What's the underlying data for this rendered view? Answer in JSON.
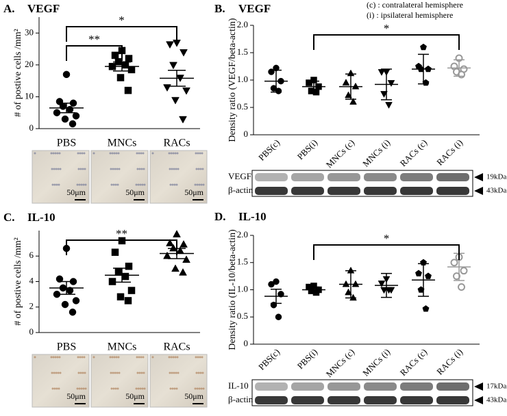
{
  "chart_data": [
    {
      "type": "dotplot",
      "label": "A.",
      "title": "VEGF",
      "ylabel": "# of postive cells /mm²",
      "categories": [
        "PBS",
        "MNCs",
        "RACs"
      ],
      "ylim": [
        0,
        35
      ],
      "yticks": [
        0,
        10,
        20,
        30
      ],
      "groups": [
        {
          "marker": "circle",
          "color": "#000000",
          "filled": true,
          "points": [
            17,
            8.5,
            8,
            7,
            6,
            5,
            4,
            3,
            1.5
          ],
          "mean": 6.5,
          "error": 1.5
        },
        {
          "marker": "square",
          "color": "#000000",
          "filled": true,
          "points": [
            24.5,
            23,
            22,
            21,
            20,
            19.5,
            18.5,
            16,
            12
          ],
          "mean": 19.5,
          "error": 1.4
        },
        {
          "marker": "triangle-down",
          "color": "#000000",
          "filled": true,
          "points": [
            27,
            26.5,
            24,
            20,
            16,
            13,
            12,
            9,
            3
          ],
          "mean": 15.8,
          "error": 2.5
        }
      ],
      "significance": [
        {
          "from": 0,
          "to": 2,
          "label": "*"
        },
        {
          "from": 0,
          "to": 1,
          "label": "**"
        }
      ],
      "micrographs": [
        "50μm",
        "50μm",
        "50μm"
      ]
    },
    {
      "type": "dotplot",
      "label": "B.",
      "title": "VEGF",
      "ylabel": "Density ratio (VEGF/beta-actin)",
      "notes": [
        "(c) : contralateral  hemisphere",
        "(i) : ipsilateral hemisphere"
      ],
      "categories": [
        "PBS(c)",
        "PBS(i)",
        "MNCs (c)",
        "MNCs (i)",
        "RACs (c)",
        "RACs (i)"
      ],
      "ylim": [
        0,
        2
      ],
      "yticks": [
        0,
        0.5,
        {
          "value": 1,
          "label": "1.0"
        },
        1.5,
        {
          "value": 2,
          "label": "2.0"
        }
      ],
      "groups": [
        {
          "marker": "circle",
          "color": "#000000",
          "filled": true,
          "points": [
            1.22,
            1.15,
            0.98,
            0.85,
            0.8
          ],
          "mean": 0.98,
          "error": 0.2
        },
        {
          "marker": "square",
          "color": "#000000",
          "filled": true,
          "points": [
            1.0,
            0.95,
            0.88,
            0.8,
            0.78
          ],
          "mean": 0.88,
          "error": 0.1
        },
        {
          "marker": "triangle-up",
          "color": "#000000",
          "filled": true,
          "points": [
            1.12,
            0.95,
            0.88,
            0.72,
            0.6
          ],
          "mean": 0.88,
          "error": 0.23
        },
        {
          "marker": "triangle-down",
          "color": "#000000",
          "filled": true,
          "points": [
            1.15,
            1.15,
            0.95,
            0.75,
            0.55
          ],
          "mean": 0.92,
          "error": 0.28
        },
        {
          "marker": "pentagon",
          "color": "#000000",
          "filled": true,
          "points": [
            1.6,
            1.25,
            1.2,
            1.2,
            0.95
          ],
          "mean": 1.2,
          "error": 0.27
        },
        {
          "marker": "circle",
          "color": "#999999",
          "filled": false,
          "points": [
            1.4,
            1.25,
            1.2,
            1.15,
            1.1
          ],
          "mean": 1.22,
          "error": 0.15
        }
      ],
      "significance": [
        {
          "from": 1,
          "to": 5,
          "label": "*"
        }
      ],
      "blot": [
        {
          "label": "VEGF",
          "size": "19kDa"
        },
        {
          "label": "β-actin",
          "size": "43kDa"
        }
      ]
    },
    {
      "type": "dotplot",
      "label": "C.",
      "title": "IL-10",
      "ylabel": "# of postive cells /mm²",
      "categories": [
        "PBS",
        "MNCs",
        "RACs"
      ],
      "ylim": [
        0,
        8
      ],
      "yticks": [
        0,
        2,
        4,
        6
      ],
      "groups": [
        {
          "marker": "circle",
          "color": "#000000",
          "filled": true,
          "points": [
            6.6,
            4.2,
            4.0,
            3.5,
            3.3,
            3.0,
            2.5,
            2.2,
            1.6
          ],
          "mean": 3.5,
          "error": 0.5
        },
        {
          "marker": "square",
          "color": "#000000",
          "filled": true,
          "points": [
            7.2,
            6.3,
            5.2,
            4.8,
            4.4,
            4.0,
            3.3,
            2.8,
            2.5
          ],
          "mean": 4.5,
          "error": 0.55
        },
        {
          "marker": "triangle-up",
          "color": "#000000",
          "filled": true,
          "points": [
            7.7,
            7.0,
            6.9,
            6.6,
            6.4,
            6.0,
            5.7,
            5.0,
            4.7
          ],
          "mean": 6.2,
          "error": 0.4
        }
      ],
      "significance": [
        {
          "from": 0,
          "to": 2,
          "label": "**"
        }
      ],
      "micrographs": [
        "50μm",
        "50μm",
        "50μm"
      ]
    },
    {
      "type": "dotplot",
      "label": "D.",
      "title": "IL-10",
      "ylabel": "Density ratio (IL-10/beta-actin)",
      "categories": [
        "PBS(c)",
        "PBS(i)",
        "MNCs (c)",
        "MNCs (i)",
        "RACs (c)",
        "RACs (i)"
      ],
      "ylim": [
        0,
        2
      ],
      "yticks": [
        0,
        0.5,
        {
          "value": 1,
          "label": "1.0"
        },
        1.5,
        {
          "value": 2,
          "label": "2.0"
        }
      ],
      "groups": [
        {
          "marker": "circle",
          "color": "#000000",
          "filled": true,
          "points": [
            1.15,
            1.1,
            0.92,
            0.72,
            0.5
          ],
          "mean": 0.88,
          "error": 0.13
        },
        {
          "marker": "square",
          "color": "#000000",
          "filled": true,
          "points": [
            1.07,
            1.05,
            1.0,
            0.98,
            0.95
          ],
          "mean": 1.0,
          "error": 0.05
        },
        {
          "marker": "triangle-up",
          "color": "#000000",
          "filled": true,
          "points": [
            1.35,
            1.1,
            1.1,
            0.95,
            0.85
          ],
          "mean": 1.1,
          "error": 0.25
        },
        {
          "marker": "triangle-down",
          "color": "#000000",
          "filled": true,
          "points": [
            1.2,
            1.12,
            1.0,
            1.0,
            1.0
          ],
          "mean": 1.08,
          "error": 0.22
        },
        {
          "marker": "pentagon",
          "color": "#000000",
          "filled": true,
          "points": [
            1.5,
            1.3,
            1.25,
            1.0,
            0.65
          ],
          "mean": 1.18,
          "error": 0.3
        },
        {
          "marker": "circle",
          "color": "#999999",
          "filled": false,
          "points": [
            1.6,
            1.5,
            1.35,
            1.25,
            1.05
          ],
          "mean": 1.42,
          "error": 0.25
        }
      ],
      "significance": [
        {
          "from": 1,
          "to": 5,
          "label": "*"
        }
      ],
      "blot": [
        {
          "label": "IL-10",
          "size": "17kDa"
        },
        {
          "label": "β-actin",
          "size": "43kDa"
        }
      ]
    }
  ]
}
